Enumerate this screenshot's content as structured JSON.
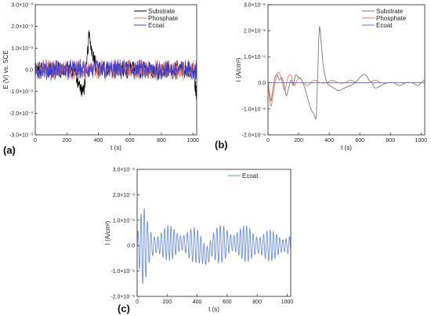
{
  "chart_data": [
    {
      "id": "a",
      "type": "line",
      "panel_label": "(a)",
      "xlabel": "t (s)",
      "ylabel": "E (V) vs. SCE",
      "xlim": [
        0,
        1024
      ],
      "ylim": [
        -0.003,
        0.003
      ],
      "x_ticks": [
        0,
        200,
        400,
        600,
        800,
        1000
      ],
      "x_tick_labels": [
        "0",
        "200",
        "400",
        "600",
        "800",
        "1000"
      ],
      "y_ticks": [
        0.003,
        0.002,
        0.001,
        0.0,
        -0.001,
        -0.002,
        -0.003
      ],
      "y_tick_labels": [
        "3.0×10⁻³",
        "2.0×10⁻³",
        "1.0×10⁻³",
        "0.0",
        "-1.0×10⁻³",
        "-2.0×10⁻³",
        "-3.0×10⁻³"
      ],
      "legend_position": "top-right",
      "series": [
        {
          "name": "Substrate",
          "color": "#000000",
          "noise_amplitude": 0.00035,
          "x": [
            0,
            250,
            280,
            300,
            320,
            340,
            360,
            400,
            1000,
            1024
          ],
          "y": [
            0.0,
            0.0,
            -0.0007,
            -0.0011,
            -0.0004,
            0.0016,
            0.0009,
            0.0,
            0.0,
            -0.0012
          ]
        },
        {
          "name": "Phosphate",
          "color": "#e8795c",
          "noise_amplitude": 0.0004,
          "x": [
            0,
            1024
          ],
          "y": [
            0.0,
            0.0
          ]
        },
        {
          "name": "Ecoat",
          "color": "#3f3fd9",
          "noise_amplitude": 0.0004,
          "x": [
            0,
            1024
          ],
          "y": [
            0.0,
            0.0
          ]
        }
      ]
    },
    {
      "id": "b",
      "type": "line",
      "panel_label": "(b)",
      "xlabel": "t (s)",
      "ylabel": "I (A/cm²)",
      "xlim": [
        0,
        1024
      ],
      "ylim": [
        -2e-06,
        3e-06
      ],
      "x_ticks": [
        0,
        200,
        400,
        600,
        800,
        1000
      ],
      "x_tick_labels": [
        "0",
        "200",
        "400",
        "600",
        "800",
        "1000"
      ],
      "y_ticks": [
        3e-06,
        2e-06,
        1e-06,
        0.0,
        -1e-06,
        -2e-06
      ],
      "y_tick_labels": [
        "3.0×10⁻⁶",
        "2.0×10⁻⁶",
        "1.0×10⁻⁶",
        "0.0",
        "-1.0×10⁻⁶",
        "-2.0×10⁻⁶"
      ],
      "legend_position": "top-right",
      "series": [
        {
          "name": "Substrate",
          "color": "#777777",
          "x": [
            0,
            10,
            20,
            30,
            45,
            60,
            75,
            90,
            110,
            120,
            135,
            150,
            165,
            180,
            200,
            220,
            240,
            260,
            280,
            300,
            315,
            325,
            335,
            345,
            360,
            380,
            400,
            430,
            460,
            500,
            540,
            570,
            600,
            620,
            640,
            660,
            680,
            700,
            740,
            780,
            820,
            860,
            900,
            940,
            980,
            1000,
            1020
          ],
          "y": [
            0.0,
            -4e-07,
            -7e-07,
            -3e-07,
            2e-07,
            3e-07,
            1e-07,
            2e-07,
            -2e-07,
            -5e-07,
            -2e-07,
            1e-07,
            -1e-07,
            3e-07,
            2e-07,
            1e-07,
            -2e-07,
            -6e-07,
            -1e-06,
            -1.2e-06,
            -1.3e-06,
            4e-07,
            2.1e-06,
            1.7e-06,
            7e-07,
            1e-07,
            -1e-07,
            -2e-07,
            -3e-07,
            -2e-07,
            -1e-07,
            0.0,
            2e-07,
            3e-07,
            3e-07,
            1e-07,
            0.0,
            -2e-07,
            -1e-07,
            0.0,
            0.0,
            -1e-07,
            0.0,
            0.0,
            -1e-07,
            0.0,
            1e-07
          ]
        },
        {
          "name": "Phosphate",
          "color": "#e8795c",
          "x": [
            0,
            10,
            20,
            35,
            50,
            70,
            90,
            110,
            130,
            150,
            170,
            190,
            210,
            230,
            260,
            300,
            340,
            380,
            420,
            460,
            500,
            540,
            580,
            620,
            660,
            700,
            740,
            780,
            820,
            860,
            900,
            940,
            980,
            1020
          ],
          "y": [
            0.0,
            -6e-07,
            -9e-07,
            -4e-07,
            1e-07,
            4e-07,
            1e-07,
            -3e-07,
            2e-07,
            3e-07,
            -1e-07,
            1e-07,
            2e-07,
            0.0,
            -1e-07,
            1e-07,
            0.0,
            0.0,
            1e-07,
            0.0,
            0.0,
            1e-07,
            0.0,
            0.0,
            0.0,
            1e-07,
            0.0,
            0.0,
            0.0,
            0.0,
            0.0,
            0.0,
            0.0,
            0.0
          ]
        },
        {
          "name": "Ecoat",
          "color": "#6b6bd9",
          "x": [
            0,
            1024
          ],
          "y": [
            0.0,
            0.0
          ]
        }
      ]
    },
    {
      "id": "c",
      "type": "line",
      "panel_label": "(c)",
      "xlabel": "t (s)",
      "ylabel": "I (A/cm²)",
      "xlim": [
        0,
        1024
      ],
      "ylim": [
        -2e-09,
        3e-09
      ],
      "x_ticks": [
        0,
        200,
        400,
        600,
        800,
        1000
      ],
      "x_tick_labels": [
        "0",
        "200",
        "400",
        "600",
        "800",
        "1000"
      ],
      "y_ticks": [
        3e-09,
        2e-09,
        1e-09,
        0.0,
        -1e-09,
        -2e-09
      ],
      "y_tick_labels": [
        "3.0×10⁻⁹",
        "2.0×10⁻⁹",
        "1.0×10⁻⁹",
        "0.0",
        "-1.0×10⁻⁹",
        "-2.0×10⁻⁹"
      ],
      "legend_position": "top-right",
      "series": [
        {
          "name": "Ecoat",
          "color": "#6d8fd6",
          "oscillation_period_s": 22,
          "x": [
            0,
            20,
            40,
            60,
            80,
            100,
            200,
            300,
            400,
            460,
            480,
            500,
            600,
            700,
            800,
            900,
            1000,
            1024
          ],
          "envelope_center": [
            0.0,
            0.0,
            0.0,
            0.0,
            0.0,
            0.0,
            1e-10,
            1e-10,
            0.0,
            -4e-10,
            -3e-10,
            0.0,
            1e-10,
            1e-10,
            0.0,
            0.0,
            0.0,
            0.0
          ],
          "envelope_amplitude": [
            6e-10,
            1.2e-09,
            1.6e-09,
            1.3e-09,
            9e-10,
            8e-10,
            7e-10,
            7e-10,
            7e-10,
            9e-10,
            8e-10,
            7e-10,
            8e-10,
            7e-10,
            8e-10,
            6e-10,
            6e-10,
            5e-10
          ]
        }
      ]
    }
  ]
}
